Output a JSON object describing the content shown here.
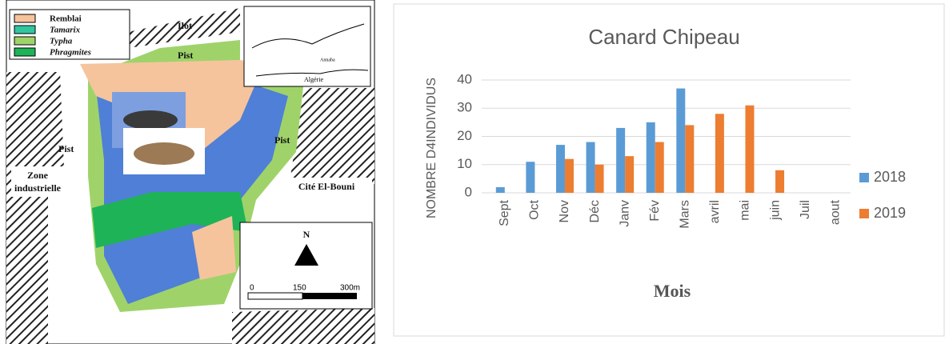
{
  "map": {
    "legend": [
      "Remblai",
      "Tamarix",
      "Typha",
      "Phragmites"
    ],
    "labels": [
      "Ilot",
      "Pist",
      "Pist",
      "Pist",
      "Zone",
      "industrielle",
      "Cité El-Bouni",
      "N",
      "0",
      "150",
      "300m",
      "Algérie",
      "Annaba"
    ]
  },
  "chart_data": {
    "type": "bar",
    "title": "Canard Chipeau",
    "x_label": "Mois",
    "y_label": "NOMBRE D4INDIVIDUS",
    "categories": [
      "Sept",
      "Oct",
      "Nov",
      "Déc",
      "Janv",
      "Fév",
      "Mars",
      "avril",
      "mai",
      "juin",
      "Juil",
      "aout"
    ],
    "series": [
      {
        "name": "2018",
        "color": "#5b9bd5",
        "values": [
          2,
          11,
          17,
          18,
          23,
          25,
          37,
          null,
          null,
          null,
          null,
          null
        ]
      },
      {
        "name": "2019",
        "color": "#ed7d31",
        "values": [
          null,
          null,
          12,
          10,
          13,
          18,
          24,
          28,
          31,
          8,
          null,
          null
        ]
      }
    ],
    "ylim": [
      0,
      40
    ],
    "yticks": [
      0,
      10,
      20,
      30,
      40
    ],
    "grid": true,
    "legend": "right"
  }
}
